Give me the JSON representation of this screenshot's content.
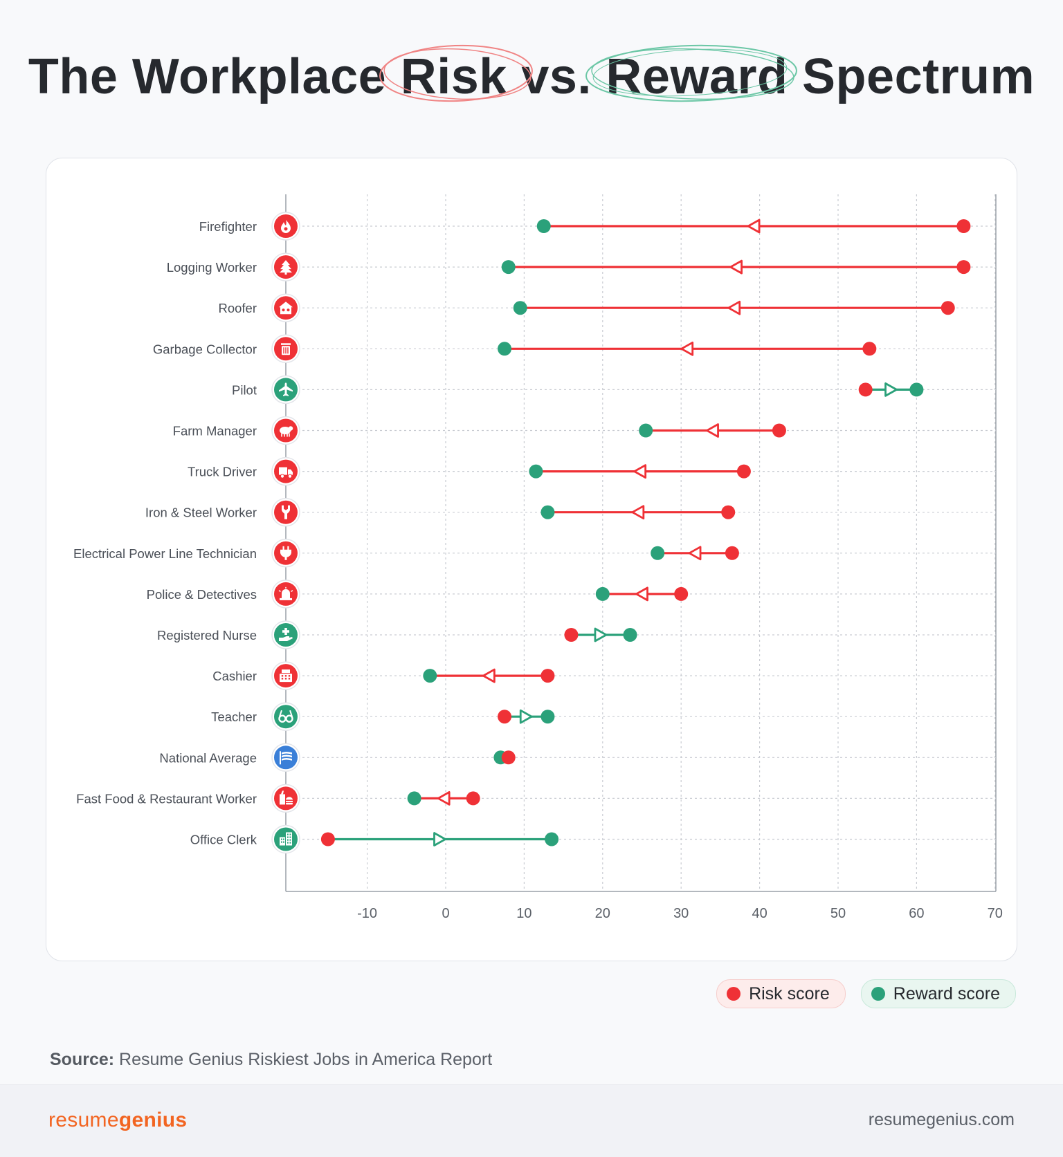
{
  "title": {
    "part1": "The Workplace",
    "risk_word": "Risk",
    "part2": "vs.",
    "reward_word": "Reward",
    "part3": "Spectrum"
  },
  "colors": {
    "risk": "#ef3136",
    "reward": "#2ba17a",
    "average": "#3a7fd8",
    "risk_ring": "#f08484",
    "reward_ring": "#6cc7a6",
    "brand": "#f26522"
  },
  "chart_data": {
    "type": "dumbbell",
    "xlim": [
      -20,
      70
    ],
    "xticks": [
      -10,
      0,
      10,
      20,
      30,
      40,
      50,
      60,
      70
    ],
    "grid": true,
    "legend_placement": "bottom-right",
    "series": [
      {
        "name": "Risk score",
        "color": "#ef3136"
      },
      {
        "name": "Reward score",
        "color": "#2ba17a"
      }
    ],
    "rows": [
      {
        "label": "Firefighter",
        "icon": "fire-icon",
        "risk": 66,
        "reward": 12.5
      },
      {
        "label": "Logging Worker",
        "icon": "tree-icon",
        "risk": 66,
        "reward": 8
      },
      {
        "label": "Roofer",
        "icon": "house-icon",
        "risk": 64,
        "reward": 9.5
      },
      {
        "label": "Garbage Collector",
        "icon": "trash-icon",
        "risk": 54,
        "reward": 7.5
      },
      {
        "label": "Pilot",
        "icon": "plane-icon",
        "risk": 53.5,
        "reward": 60
      },
      {
        "label": "Farm Manager",
        "icon": "sheep-icon",
        "risk": 42.5,
        "reward": 25.5
      },
      {
        "label": "Truck Driver",
        "icon": "truck-icon",
        "risk": 38,
        "reward": 11.5
      },
      {
        "label": "Iron & Steel Worker",
        "icon": "wrench-icon",
        "risk": 36,
        "reward": 13
      },
      {
        "label": "Electrical Power Line Technician",
        "icon": "plug-icon",
        "risk": 36.5,
        "reward": 27
      },
      {
        "label": "Police & Detectives",
        "icon": "siren-icon",
        "risk": 30,
        "reward": 20
      },
      {
        "label": "Registered Nurse",
        "icon": "medical-hand-icon",
        "risk": 16,
        "reward": 23.5
      },
      {
        "label": "Cashier",
        "icon": "cash-register-icon",
        "risk": 13,
        "reward": -2
      },
      {
        "label": "Teacher",
        "icon": "glasses-icon",
        "risk": 7.5,
        "reward": 13
      },
      {
        "label": "National Average",
        "icon": "flag-icon",
        "risk": 8,
        "reward": 7
      },
      {
        "label": "Fast Food & Restaurant Worker",
        "icon": "burger-icon",
        "risk": 3.5,
        "reward": -4
      },
      {
        "label": "Office Clerk",
        "icon": "office-building-icon",
        "risk": -15,
        "reward": 13.5
      }
    ]
  },
  "legend": {
    "risk_label": "Risk score",
    "reward_label": "Reward score"
  },
  "source": {
    "label": "Source:",
    "text": " Resume Genius Riskiest Jobs in America Report"
  },
  "footer": {
    "brand_light": "resume",
    "brand_bold": "genius",
    "site": "resumegenius.com"
  }
}
